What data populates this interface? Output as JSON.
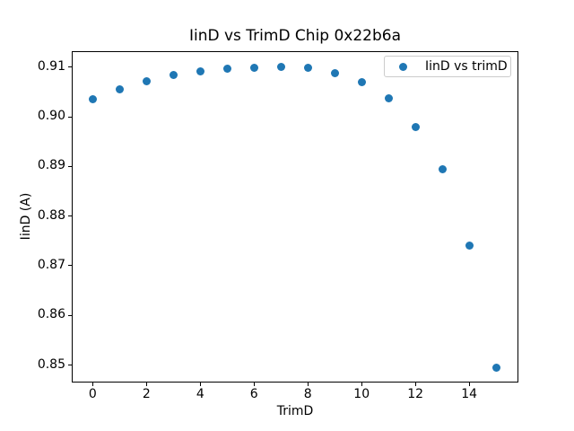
{
  "chart_data": {
    "type": "scatter",
    "title": "IinD vs TrimD Chip 0x22b6a",
    "xlabel": "TrimD",
    "ylabel": "IinD (A)",
    "legend_label": "IinD vs trimD",
    "legend_position": "upper right",
    "marker_color": "#1f77b4",
    "background_color": "#ffffff",
    "grid": false,
    "x": [
      0,
      1,
      2,
      3,
      4,
      5,
      6,
      7,
      8,
      9,
      10,
      11,
      12,
      13,
      14,
      15
    ],
    "y": [
      0.9035,
      0.9055,
      0.9072,
      0.9084,
      0.9092,
      0.9097,
      0.9099,
      0.91,
      0.9099,
      0.9088,
      0.907,
      0.9037,
      0.8979,
      0.8895,
      0.874,
      0.8495
    ],
    "xlim": [
      -0.78,
      15.83
    ],
    "ylim": [
      0.8465,
      0.9132
    ],
    "xticks": {
      "values": [
        0,
        2,
        4,
        6,
        8,
        10,
        12,
        14
      ],
      "labels": [
        "0",
        "2",
        "4",
        "6",
        "8",
        "10",
        "12",
        "14"
      ]
    },
    "yticks": {
      "values": [
        0.85,
        0.86,
        0.87,
        0.88,
        0.89,
        0.9,
        0.91
      ],
      "labels": [
        "0.85",
        "0.86",
        "0.87",
        "0.88",
        "0.89",
        "0.90",
        "0.91"
      ]
    }
  }
}
